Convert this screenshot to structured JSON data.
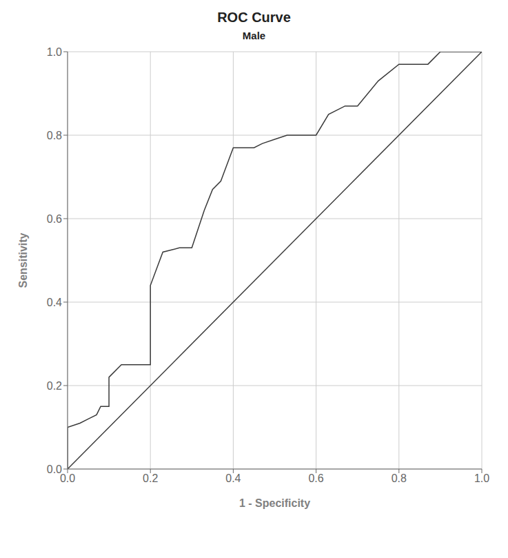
{
  "chart_data": {
    "type": "line",
    "title": "ROC Curve",
    "subtitle": "Male",
    "xlabel": "1 - Specificity",
    "ylabel": "Sensitivity",
    "xlim": [
      0.0,
      1.0
    ],
    "ylim": [
      0.0,
      1.0
    ],
    "xticks": [
      {
        "value": 0.0,
        "label": "0.0"
      },
      0.2,
      0.4,
      0.6,
      0.8,
      {
        "value": 1.0,
        "label": "1.0"
      }
    ],
    "yticks": [
      {
        "value": 0.0,
        "label": "0.0"
      },
      0.2,
      0.4,
      0.6,
      0.8,
      {
        "value": 1.0,
        "label": "1.0"
      }
    ],
    "grid": true,
    "series": [
      {
        "color": "#3a3a3a",
        "x": [
          0.0,
          1.0
        ],
        "values": [
          0.0,
          1.0
        ]
      },
      {
        "color": "#3a3a3a",
        "x": [
          0.0,
          0.0,
          0.03,
          0.05,
          0.07,
          0.08,
          0.1,
          0.1,
          0.13,
          0.17,
          0.2,
          0.2,
          0.23,
          0.27,
          0.3,
          0.33,
          0.35,
          0.37,
          0.4,
          0.43,
          0.45,
          0.47,
          0.5,
          0.53,
          0.57,
          0.6,
          0.63,
          0.67,
          0.7,
          0.75,
          0.8,
          0.83,
          0.87,
          0.9,
          0.93,
          1.0
        ],
        "values": [
          0.0,
          0.1,
          0.11,
          0.12,
          0.13,
          0.15,
          0.15,
          0.22,
          0.25,
          0.25,
          0.25,
          0.44,
          0.52,
          0.53,
          0.53,
          0.62,
          0.67,
          0.69,
          0.77,
          0.77,
          0.77,
          0.78,
          0.79,
          0.8,
          0.8,
          0.8,
          0.85,
          0.87,
          0.87,
          0.93,
          0.97,
          0.97,
          0.97,
          1.0,
          1.0,
          1.0
        ]
      }
    ]
  }
}
